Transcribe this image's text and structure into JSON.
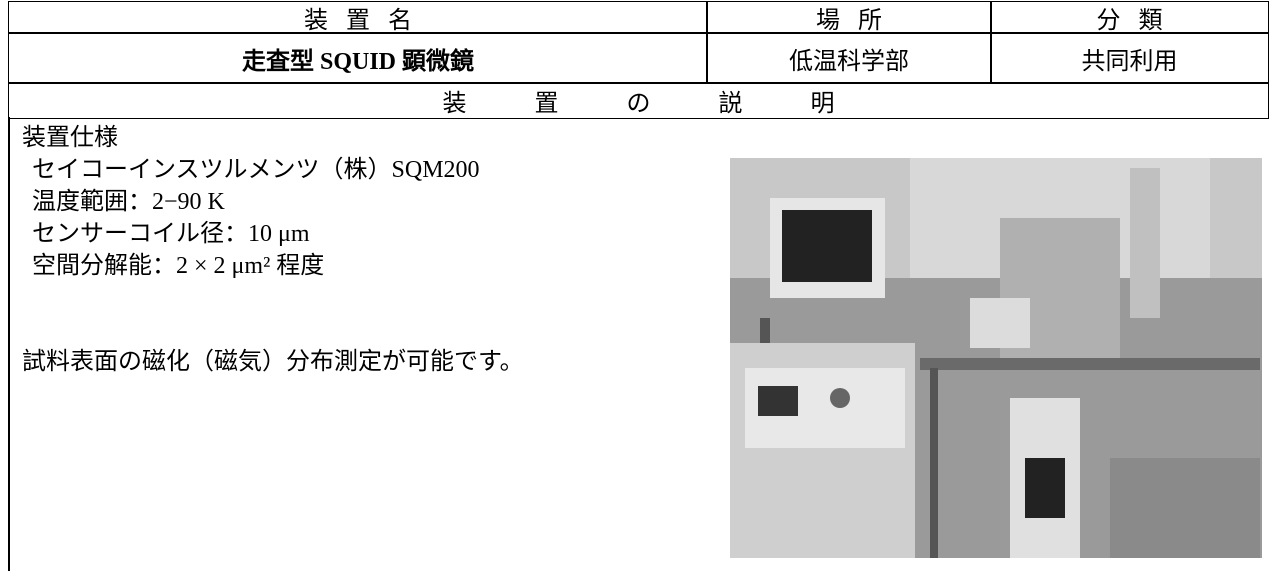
{
  "header": {
    "columns": [
      "装 置 名",
      "場 所",
      "分 類"
    ]
  },
  "device": {
    "name": "走査型 SQUID 顕微鏡",
    "location": "低温科学部",
    "category": "共同利用"
  },
  "description_header": "装 置 の 説 明",
  "description": {
    "heading": "装置仕様",
    "specs": [
      "セイコーインスツルメンツ（株）SQM200",
      "温度範囲：2−90 K",
      "センサーコイル径：10 μm",
      "空間分解能：2 × 2 μm² 程度"
    ],
    "summary": "試料表面の磁化（磁気）分布測定が可能です。"
  }
}
